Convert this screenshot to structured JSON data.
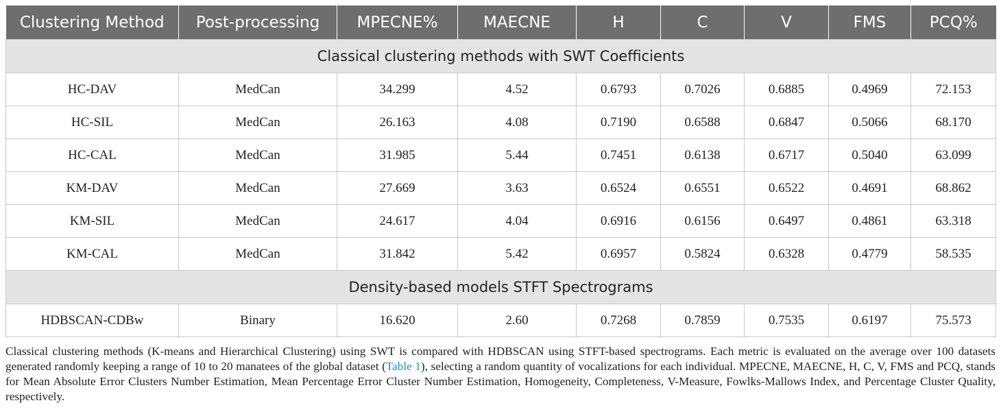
{
  "headers": [
    "Clustering Method",
    "Post-processing",
    "MPECNE%",
    "MAECNE",
    "H",
    "C",
    "V",
    "FMS",
    "PCQ%"
  ],
  "section1": "Classical clustering methods with SWT Coefficients",
  "rows1": [
    [
      "HC-DAV",
      "MedCan",
      "34.299",
      "4.52",
      "0.6793",
      "0.7026",
      "0.6885",
      "0.4969",
      "72.153"
    ],
    [
      "HC-SIL",
      "MedCan",
      "26.163",
      "4.08",
      "0.7190",
      "0.6588",
      "0.6847",
      "0.5066",
      "68.170"
    ],
    [
      "HC-CAL",
      "MedCan",
      "31.985",
      "5.44",
      "0.7451",
      "0.6138",
      "0.6717",
      "0.5040",
      "63.099"
    ],
    [
      "KM-DAV",
      "MedCan",
      "27.669",
      "3.63",
      "0.6524",
      "0.6551",
      "0.6522",
      "0.4691",
      "68.862"
    ],
    [
      "KM-SIL",
      "MedCan",
      "24.617",
      "4.04",
      "0.6916",
      "0.6156",
      "0.6497",
      "0.4861",
      "63.318"
    ],
    [
      "KM-CAL",
      "MedCan",
      "31.842",
      "5.42",
      "0.6957",
      "0.5824",
      "0.6328",
      "0.4779",
      "58.535"
    ]
  ],
  "section2": "Density-based models STFT Spectrograms",
  "rows2": [
    [
      "HDBSCAN-CDBw",
      "Binary",
      "16.620",
      "2.60",
      "0.7268",
      "0.7859",
      "0.7535",
      "0.6197",
      "75.573"
    ]
  ],
  "caption": {
    "before": "Classical clustering methods (K-means and Hierarchical Clustering) using SWT is compared with HDBSCAN using STFT-based spectrograms. Each metric is evaluated on the average over 100 datasets generated randomly keeping a range of 10 to 20 manatees of the global dataset (",
    "link": "Table 1",
    "after": "), selecting a random quantity of vocalizations for each individual. MPECNE, MAECNE, H, C, V, FMS and PCQ, stands for Mean Absolute Error Clusters Number Estimation, Mean Percentage Error Cluster Number Estimation, Homogeneity, Completeness, V-Measure, Fowlks-Mallows Index, and Percentage Cluster Quality, respectively."
  }
}
